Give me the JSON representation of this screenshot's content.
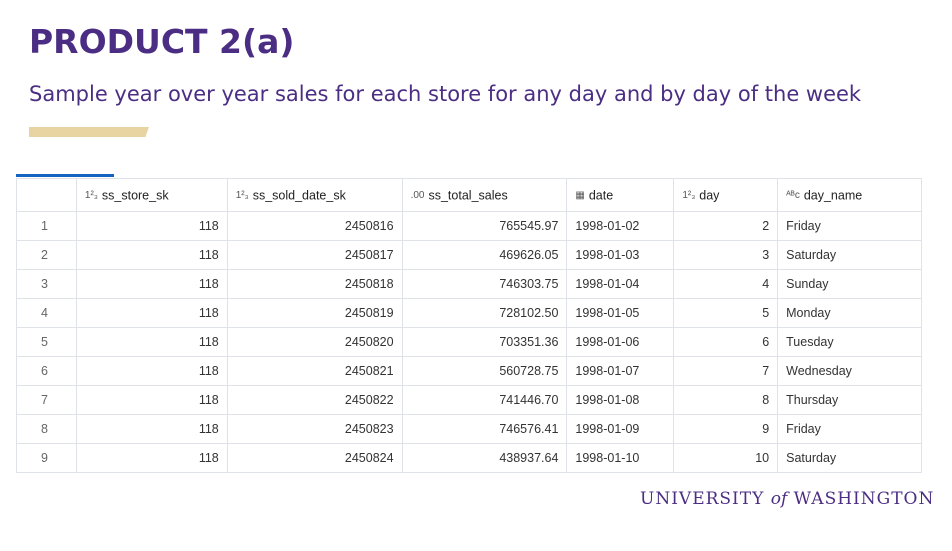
{
  "slide": {
    "title": "PRODUCT 2(a)",
    "subtitle": "Sample year over year sales for each store for any day and by day of the week",
    "footer": {
      "part1": "UNIVERSITY",
      "part2": "of",
      "part3": "WASHINGTON"
    }
  },
  "colors": {
    "brand_purple": "#4b2e83",
    "gold": "#e8d3a2",
    "tab_accent": "#1565c0"
  },
  "table": {
    "columns": [
      {
        "icon": "123-numeric-icon",
        "icon_glyph": "1²₃",
        "label": "ss_store_sk"
      },
      {
        "icon": "123-numeric-icon",
        "icon_glyph": "1²₃",
        "label": "ss_sold_date_sk"
      },
      {
        "icon": "decimal-icon",
        "icon_glyph": ".00",
        "label": "ss_total_sales"
      },
      {
        "icon": "calendar-icon",
        "icon_glyph": "▦",
        "label": "date"
      },
      {
        "icon": "123-numeric-icon",
        "icon_glyph": "1²₃",
        "label": "day"
      },
      {
        "icon": "abc-string-icon",
        "icon_glyph": "ᴬᴮc",
        "label": "day_name"
      }
    ],
    "rows": [
      [
        "1",
        "118",
        "2450816",
        "765545.97",
        "1998-01-02",
        "2",
        "Friday"
      ],
      [
        "2",
        "118",
        "2450817",
        "469626.05",
        "1998-01-03",
        "3",
        "Saturday"
      ],
      [
        "3",
        "118",
        "2450818",
        "746303.75",
        "1998-01-04",
        "4",
        "Sunday"
      ],
      [
        "4",
        "118",
        "2450819",
        "728102.50",
        "1998-01-05",
        "5",
        "Monday"
      ],
      [
        "5",
        "118",
        "2450820",
        "703351.36",
        "1998-01-06",
        "6",
        "Tuesday"
      ],
      [
        "6",
        "118",
        "2450821",
        "560728.75",
        "1998-01-07",
        "7",
        "Wednesday"
      ],
      [
        "7",
        "118",
        "2450822",
        "741446.70",
        "1998-01-08",
        "8",
        "Thursday"
      ],
      [
        "8",
        "118",
        "2450823",
        "746576.41",
        "1998-01-09",
        "9",
        "Friday"
      ],
      [
        "9",
        "118",
        "2450824",
        "438937.64",
        "1998-01-10",
        "10",
        "Saturday"
      ]
    ]
  }
}
